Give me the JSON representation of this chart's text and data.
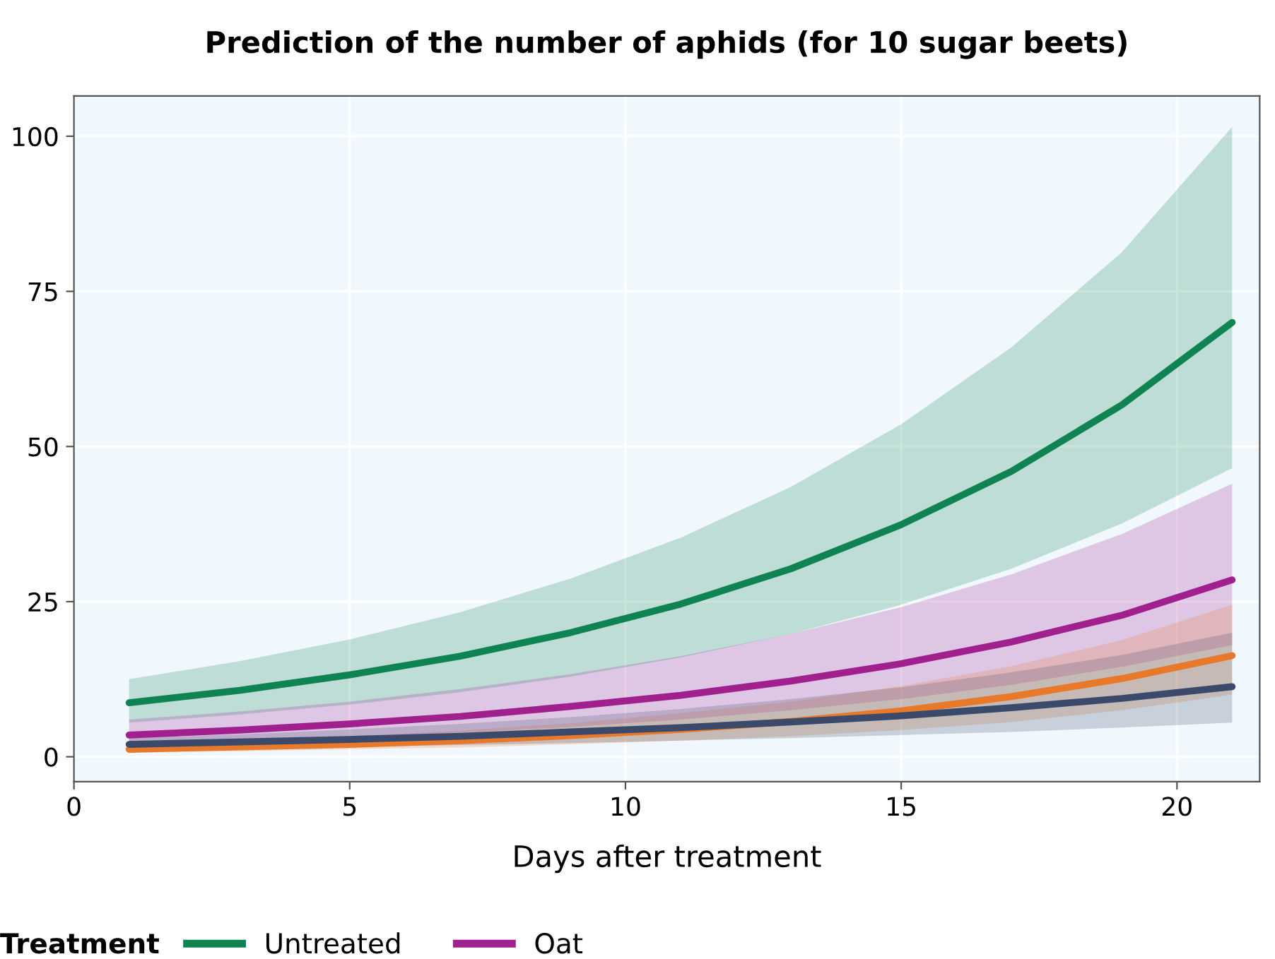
{
  "chart_data": {
    "type": "line",
    "title": "Prediction of the number of aphids (for 10 sugar beets)",
    "xlabel": "Days after treatment",
    "legend_title": "Treatment",
    "x": [
      1,
      3,
      5,
      7,
      9,
      11,
      13,
      15,
      17,
      19,
      21
    ],
    "series": [
      {
        "name": "Untreated",
        "color": "#0f8452",
        "values": [
          8.7,
          10.7,
          13.2,
          16.2,
          20.0,
          24.6,
          30.3,
          37.4,
          46.0,
          56.7,
          70.0
        ],
        "lower": [
          5.5,
          6.8,
          8.4,
          10.4,
          12.9,
          16.0,
          19.8,
          24.5,
          30.3,
          37.6,
          46.5
        ],
        "upper": [
          12.5,
          15.4,
          18.9,
          23.3,
          28.7,
          35.3,
          43.5,
          53.6,
          66.0,
          81.3,
          101.5
        ]
      },
      {
        "name": "Oat",
        "color": "#a0208e",
        "values": [
          3.5,
          4.3,
          5.3,
          6.5,
          8.1,
          9.9,
          12.2,
          15.0,
          18.5,
          22.8,
          28.5
        ],
        "lower": [
          2.0,
          2.5,
          3.1,
          3.9,
          4.8,
          6.0,
          7.5,
          9.3,
          11.6,
          14.5,
          18.0
        ],
        "upper": [
          6.0,
          7.3,
          8.9,
          10.9,
          13.3,
          16.2,
          19.8,
          24.1,
          29.4,
          35.9,
          44.0
        ]
      },
      {
        "color": "#e8782a",
        "values": [
          1.2,
          1.6,
          2.0,
          2.6,
          3.4,
          4.4,
          5.7,
          7.4,
          9.7,
          12.6,
          16.3
        ],
        "lower": [
          0.7,
          0.9,
          1.2,
          1.5,
          2.0,
          2.6,
          3.3,
          4.3,
          5.6,
          7.5,
          10.0
        ],
        "upper": [
          2.0,
          2.6,
          3.3,
          4.2,
          5.4,
          7.0,
          8.9,
          11.4,
          14.6,
          18.8,
          24.5
        ]
      },
      {
        "color": "#3b4a6b",
        "values": [
          2.0,
          2.4,
          2.8,
          3.3,
          4.0,
          4.7,
          5.6,
          6.6,
          7.9,
          9.4,
          11.3
        ],
        "lower": [
          1.2,
          1.4,
          1.6,
          1.9,
          2.2,
          2.6,
          3.0,
          3.5,
          4.0,
          4.7,
          5.5
        ],
        "upper": [
          3.0,
          3.6,
          4.4,
          5.3,
          6.4,
          7.7,
          9.3,
          11.2,
          13.6,
          16.4,
          20.0
        ]
      }
    ],
    "xlim": [
      0,
      21.5
    ],
    "ylim": [
      -4,
      106.5
    ],
    "xticks": [
      0,
      5,
      10,
      15,
      20
    ],
    "yticks": [
      0,
      25,
      50,
      75,
      100
    ],
    "grid": true,
    "legend": "bottom",
    "marker": "none",
    "line_style": "solid"
  }
}
